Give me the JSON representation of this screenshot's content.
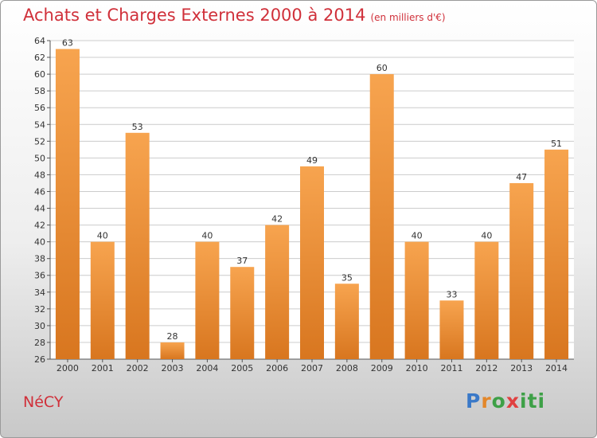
{
  "header": {
    "title": "Achats et Charges Externes 2000 à 2014",
    "subtitle": "(en milliers d'€)"
  },
  "footer": {
    "commune": "NéCY",
    "logo": [
      "P",
      "r",
      "o",
      "x",
      "iti"
    ]
  },
  "colors": {
    "title": "#d0303a",
    "bar_light": "#f7a44f",
    "bar_dark": "#d8761f",
    "grid": "#cccccc"
  },
  "chart_data": {
    "type": "bar",
    "title": "Achats et Charges Externes 2000 à 2014",
    "subtitle": "(en milliers d'€)",
    "xlabel": "",
    "ylabel": "",
    "categories": [
      "2000",
      "2001",
      "2002",
      "2003",
      "2004",
      "2005",
      "2006",
      "2007",
      "2008",
      "2009",
      "2010",
      "2011",
      "2012",
      "2013",
      "2014"
    ],
    "values": [
      63,
      40,
      53,
      28,
      40,
      37,
      42,
      49,
      35,
      60,
      40,
      33,
      40,
      47,
      51
    ],
    "ylim": [
      26,
      64
    ],
    "ytick_step": 2,
    "grid": "horizontal",
    "legend": "none"
  }
}
